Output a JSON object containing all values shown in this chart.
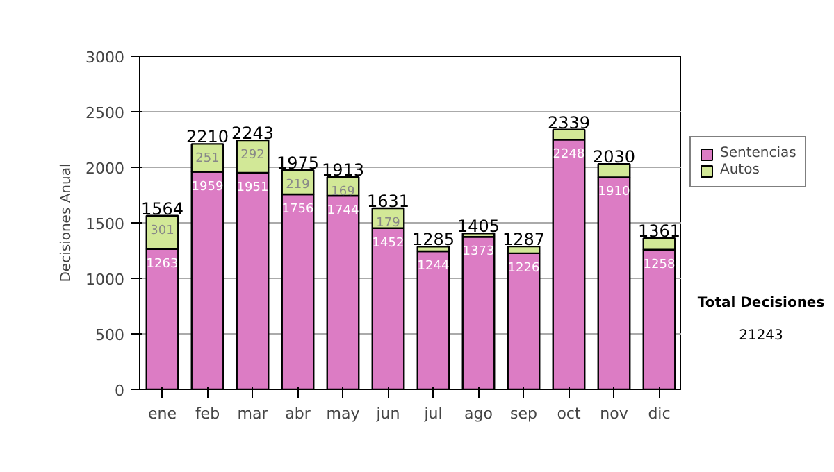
{
  "chart_data": {
    "type": "bar",
    "stacked": true,
    "ylabel": "Decisiones Anual",
    "categories": [
      "ene",
      "feb",
      "mar",
      "abr",
      "may",
      "jun",
      "jul",
      "ago",
      "sep",
      "oct",
      "nov",
      "dic"
    ],
    "series": [
      {
        "name": "Sentencias",
        "color": "#dc7cc4",
        "values": [
          1263,
          1959,
          1951,
          1756,
          1744,
          1452,
          1244,
          1373,
          1226,
          2248,
          1910,
          1258
        ],
        "value_labels": [
          "1263",
          "1959",
          "1951",
          "1756",
          "1744",
          "1452",
          "1244",
          "1373",
          "1226",
          "2248",
          "1910",
          "1258"
        ]
      },
      {
        "name": "Autos",
        "color": "#d2e897",
        "values": [
          301,
          251,
          292,
          219,
          169,
          179,
          41,
          32,
          61,
          91,
          120,
          103
        ],
        "value_labels": [
          "301",
          "251",
          "292",
          "219",
          "169",
          "179",
          null,
          null,
          null,
          null,
          null,
          null
        ]
      }
    ],
    "totals": [
      "1564",
      "2210",
      "2243",
      "1975",
      "1913",
      "1631",
      "1285",
      "1405",
      "1287",
      "2339",
      "2030",
      "1361"
    ],
    "ylim": [
      0,
      3000
    ],
    "yticks": [
      0,
      500,
      1000,
      1500,
      2000,
      2500,
      3000
    ],
    "grid": "y",
    "legend": "right",
    "annotations": [
      "Total Decisiones",
      "21243"
    ]
  }
}
